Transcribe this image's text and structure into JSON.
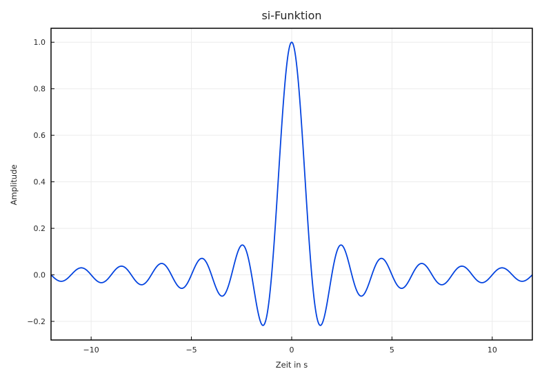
{
  "chart_data": {
    "type": "line",
    "title": "si-Funktion",
    "xlabel": "Zeit in s",
    "ylabel": "Amplitude",
    "xlim": [
      -12,
      12
    ],
    "ylim": [
      -0.28,
      1.06
    ],
    "x_ticks": [
      -10,
      -5,
      0,
      5,
      10
    ],
    "x_tick_labels": [
      "−10",
      "−5",
      "0",
      "5",
      "10"
    ],
    "y_ticks": [
      -0.2,
      0.0,
      0.2,
      0.4,
      0.6,
      0.8,
      1.0
    ],
    "y_tick_labels": [
      "−0.2",
      "0.0",
      "0.2",
      "0.4",
      "0.6",
      "0.8",
      "1.0"
    ],
    "grid": true,
    "series": [
      {
        "function": "sin(pi*x)/(pi*x)",
        "x_range": [
          -12,
          12
        ],
        "color": "#0343df"
      }
    ]
  },
  "colors": {
    "line": "#0343df",
    "grid": "#ebebeb",
    "axes": "#000000"
  }
}
